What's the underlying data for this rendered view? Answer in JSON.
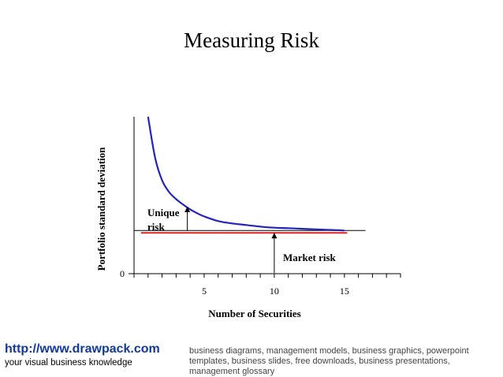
{
  "page": {
    "title": "Measuring Risk"
  },
  "chart_data": {
    "type": "line",
    "title": "Measuring Risk",
    "xlabel": "Number of Securities",
    "ylabel": "Portfolio standard deviation",
    "xlim": [
      0,
      19
    ],
    "ylim": [
      0,
      10
    ],
    "x_ticks": [
      5,
      10,
      15
    ],
    "y_tick_label": "0",
    "grid": false,
    "series": [
      {
        "color": "#2424b8",
        "x": [
          1,
          1.5,
          2,
          2.5,
          3,
          3.5,
          4,
          4.5,
          5,
          6,
          7,
          8,
          9,
          10,
          11,
          12,
          13,
          14,
          15
        ],
        "y": [
          10.0,
          7.4,
          5.95,
          5.2,
          4.75,
          4.4,
          4.1,
          3.85,
          3.65,
          3.35,
          3.2,
          3.1,
          3.0,
          2.93,
          2.9,
          2.86,
          2.82,
          2.79,
          2.75
        ]
      }
    ],
    "reference_lines": [
      {
        "value": 2.6,
        "color": "#e02020",
        "from": 0.5,
        "to": 15.2
      },
      {
        "value": 2.75,
        "color": "#000000",
        "from": 0,
        "to": 16.5
      }
    ],
    "annotations": [
      {
        "text_lines": [
          "Unique",
          "risk"
        ],
        "arrow_x": 3.8
      },
      {
        "text_lines": [
          "Market risk"
        ],
        "arrow_x": 10
      }
    ]
  },
  "footer": {
    "url": "http://www.drawpack.com",
    "tagline": "your visual business knowledge",
    "keywords": "business diagrams, management models, business graphics, powerpoint templates, business slides, free downloads, business presentations, management glossary"
  }
}
